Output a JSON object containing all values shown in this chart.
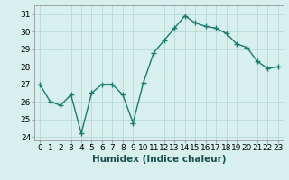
{
  "x": [
    0,
    1,
    2,
    3,
    4,
    5,
    6,
    7,
    8,
    9,
    10,
    11,
    12,
    13,
    14,
    15,
    16,
    17,
    18,
    19,
    20,
    21,
    22,
    23
  ],
  "y": [
    27.0,
    26.0,
    25.8,
    26.4,
    24.2,
    26.5,
    27.0,
    27.0,
    26.4,
    24.8,
    27.1,
    28.8,
    29.5,
    30.2,
    30.9,
    30.5,
    30.3,
    30.2,
    29.9,
    29.3,
    29.1,
    28.3,
    27.9,
    28.0
  ],
  "line_color": "#1a7a6e",
  "marker": "+",
  "markersize": 4,
  "linewidth": 1.0,
  "xlabel": "Humidex (Indice chaleur)",
  "xlim": [
    -0.5,
    23.5
  ],
  "ylim": [
    23.8,
    31.5
  ],
  "yticks": [
    24,
    25,
    26,
    27,
    28,
    29,
    30,
    31
  ],
  "xticks": [
    0,
    1,
    2,
    3,
    4,
    5,
    6,
    7,
    8,
    9,
    10,
    11,
    12,
    13,
    14,
    15,
    16,
    17,
    18,
    19,
    20,
    21,
    22,
    23
  ],
  "xtick_labels": [
    "0",
    "1",
    "2",
    "3",
    "4",
    "5",
    "6",
    "7",
    "8",
    "9",
    "10",
    "11",
    "12",
    "13",
    "14",
    "15",
    "16",
    "17",
    "18",
    "19",
    "20",
    "21",
    "22",
    "23"
  ],
  "bg_color": "#d7f0ee",
  "grid_color": "#b8d8d5",
  "tick_fontsize": 6.5,
  "xlabel_fontsize": 7.5
}
